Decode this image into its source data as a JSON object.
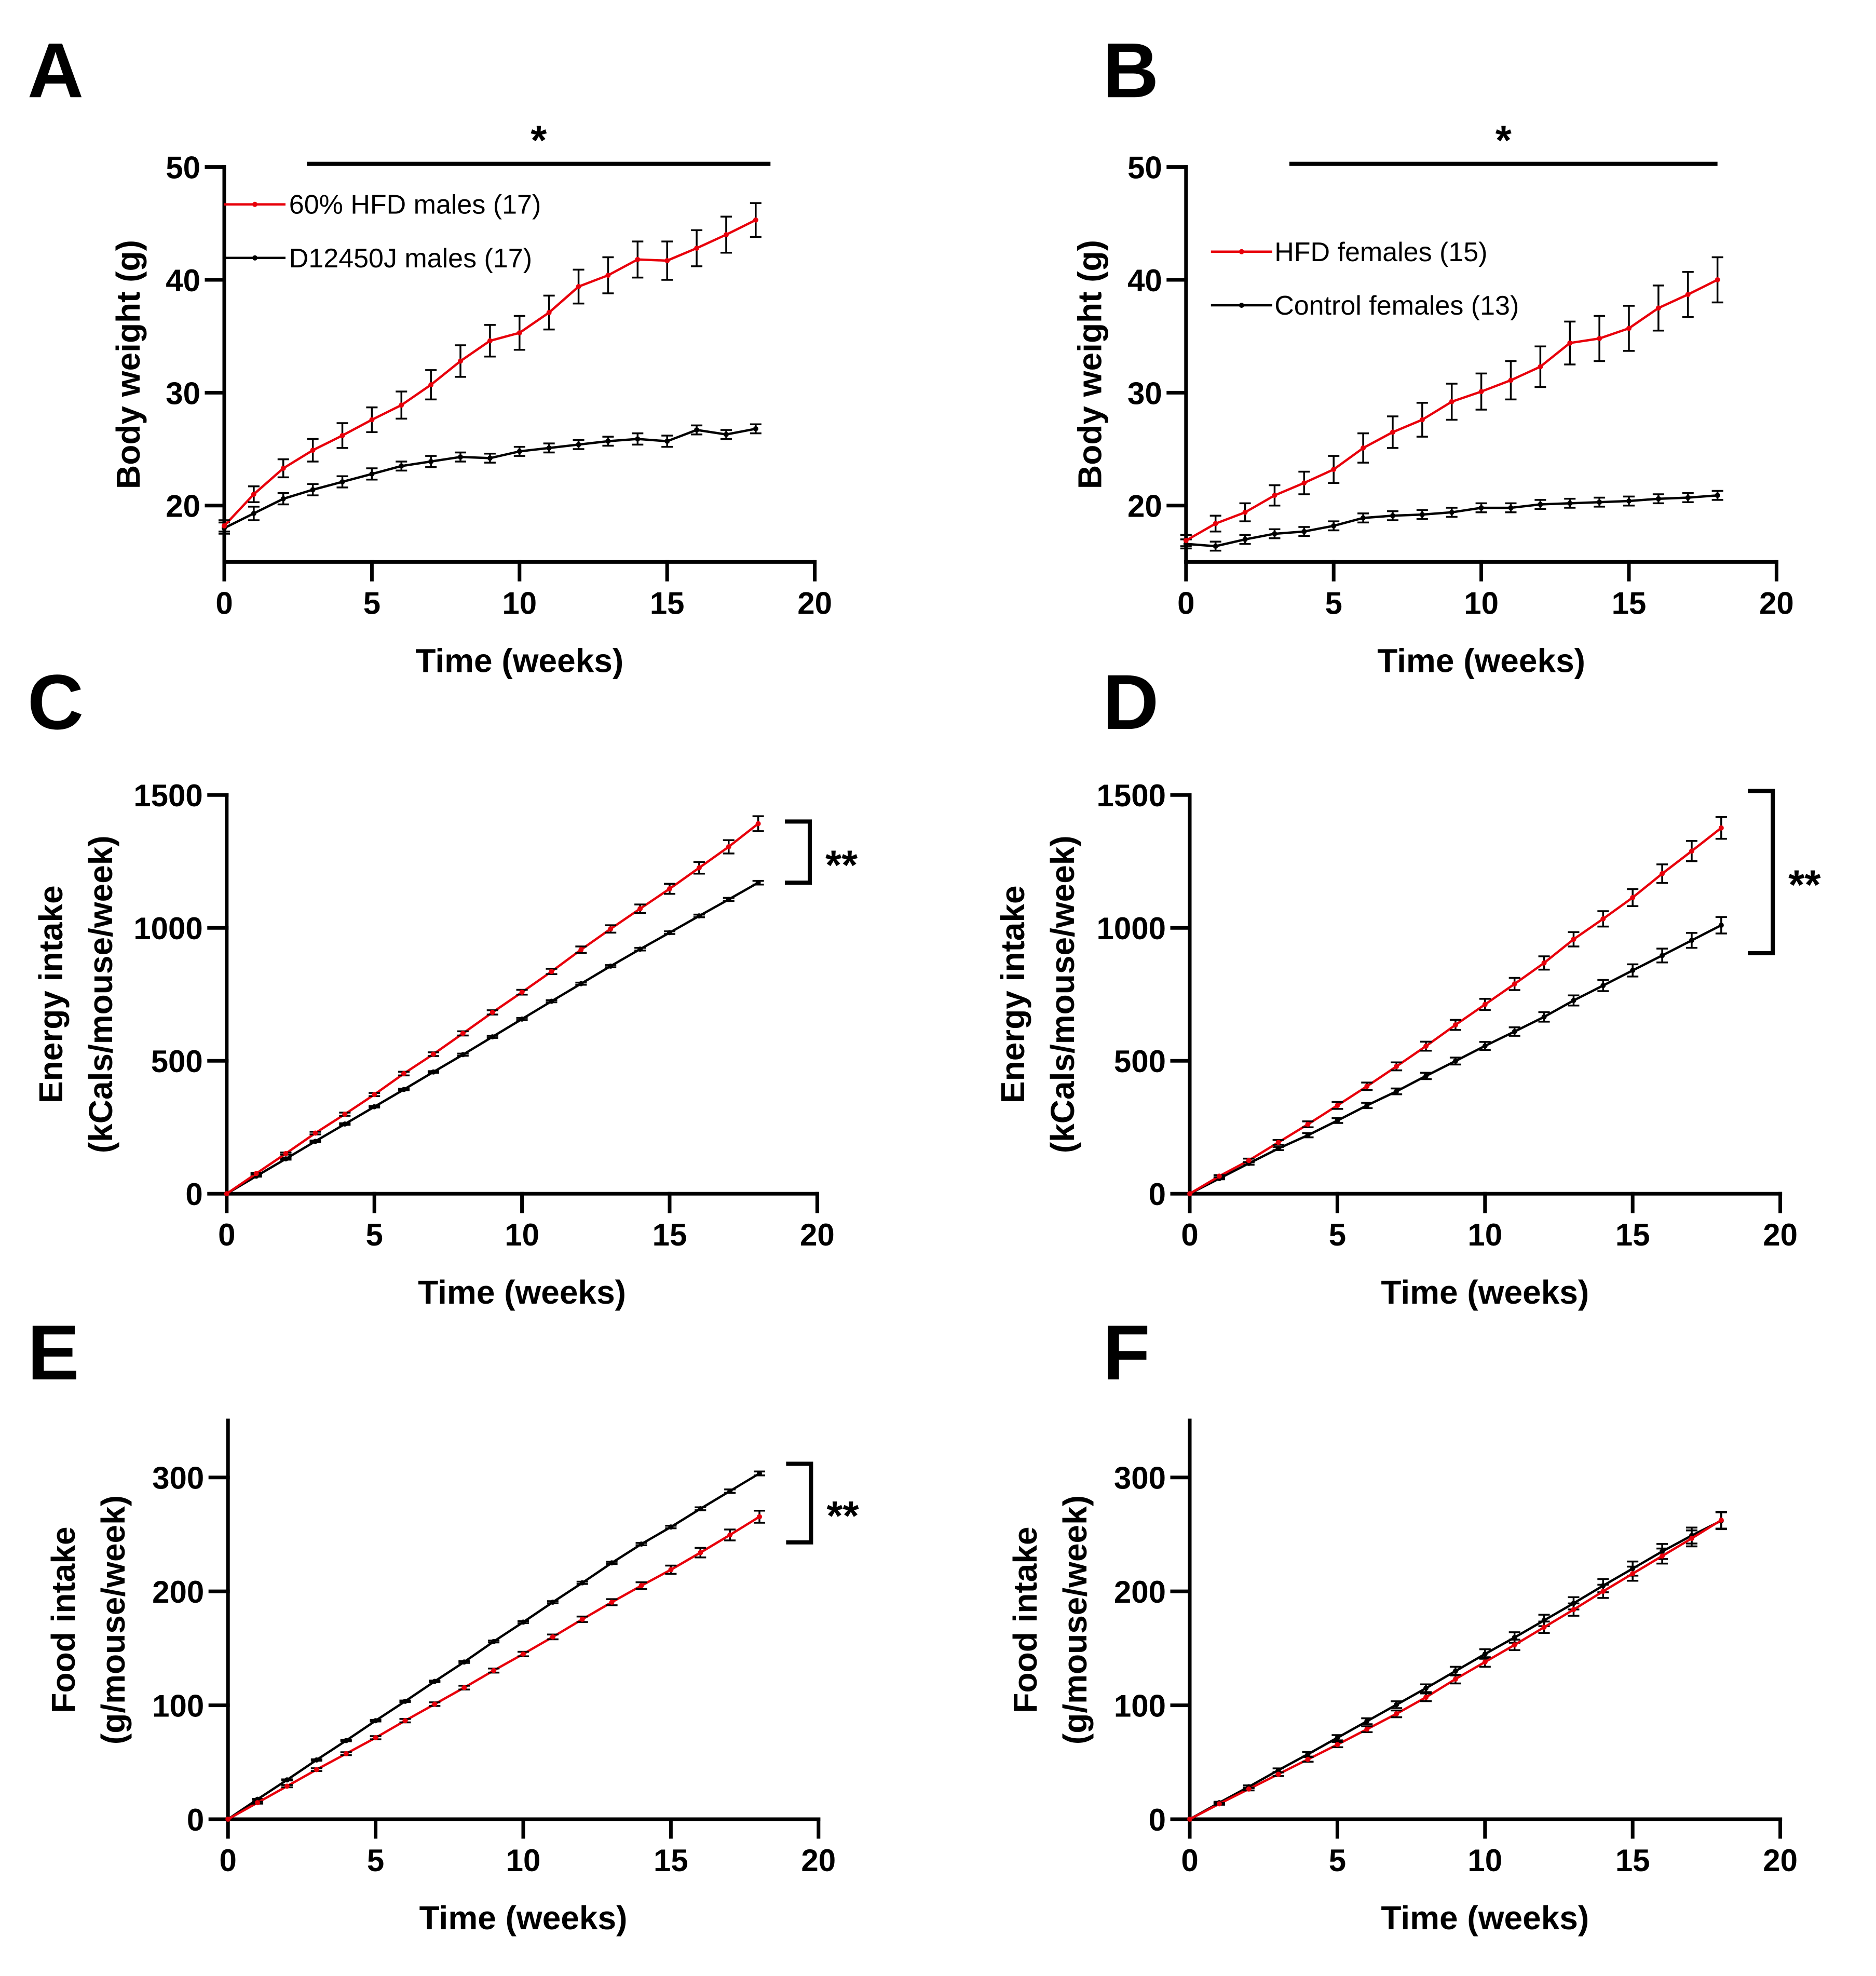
{
  "chart_data": [
    {
      "panel": "A",
      "type": "line",
      "xlabel": "Time (weeks)",
      "ylabel": "Body weight (g)",
      "xlim": [
        0,
        20
      ],
      "ylim": [
        15,
        50
      ],
      "xticks": [
        0,
        5,
        10,
        15,
        20
      ],
      "yticks": [
        20,
        30,
        40,
        50
      ],
      "legend_position": "top-left",
      "significance": {
        "type": "bar",
        "label": "*",
        "from_week": 2.8,
        "to_week": 18.5
      },
      "x": [
        0,
        1,
        2,
        3,
        4,
        5,
        6,
        7,
        8,
        9,
        10,
        11,
        12,
        13,
        14,
        15,
        16,
        17,
        18
      ],
      "series": [
        {
          "name": "60% HFD males (17)",
          "color": "#e8000b",
          "values": [
            18.2,
            21.0,
            23.3,
            24.9,
            26.2,
            27.6,
            28.9,
            30.7,
            32.8,
            34.6,
            35.3,
            37.1,
            39.4,
            40.4,
            41.8,
            41.7,
            42.8,
            44.0,
            45.3
          ],
          "errors": [
            0.5,
            0.7,
            0.8,
            1.0,
            1.1,
            1.1,
            1.2,
            1.3,
            1.4,
            1.4,
            1.5,
            1.5,
            1.5,
            1.6,
            1.6,
            1.7,
            1.6,
            1.6,
            1.5
          ]
        },
        {
          "name": "D12450J males (17)",
          "color": "#000000",
          "values": [
            18.0,
            19.3,
            20.6,
            21.4,
            22.1,
            22.8,
            23.5,
            23.9,
            24.3,
            24.2,
            24.8,
            25.1,
            25.4,
            25.7,
            25.9,
            25.7,
            26.7,
            26.3,
            26.8
          ],
          "errors": [
            0.5,
            0.6,
            0.5,
            0.5,
            0.5,
            0.5,
            0.4,
            0.5,
            0.4,
            0.4,
            0.4,
            0.4,
            0.4,
            0.4,
            0.5,
            0.5,
            0.4,
            0.4,
            0.4
          ]
        }
      ]
    },
    {
      "panel": "B",
      "type": "line",
      "xlabel": "Time (weeks)",
      "ylabel": "Body weight (g)",
      "xlim": [
        0,
        20
      ],
      "ylim": [
        15,
        50
      ],
      "xticks": [
        0,
        5,
        10,
        15,
        20
      ],
      "yticks": [
        20,
        30,
        40,
        50
      ],
      "legend_position": "top-left",
      "significance": {
        "type": "bar",
        "label": "*",
        "from_week": 3.5,
        "to_week": 18.0
      },
      "x": [
        0,
        1,
        2,
        3,
        4,
        5,
        6,
        7,
        8,
        9,
        10,
        11,
        12,
        13,
        14,
        15,
        16,
        17,
        18
      ],
      "series": [
        {
          "name": "HFD females (15)",
          "color": "#e8000b",
          "values": [
            16.9,
            18.4,
            19.4,
            20.9,
            22.0,
            23.2,
            25.1,
            26.5,
            27.6,
            29.2,
            30.1,
            31.1,
            32.3,
            34.4,
            34.8,
            35.7,
            37.5,
            38.7,
            40.0
          ],
          "errors": [
            0.5,
            0.7,
            0.8,
            0.9,
            1.0,
            1.2,
            1.3,
            1.4,
            1.5,
            1.6,
            1.6,
            1.7,
            1.8,
            1.9,
            2.0,
            2.0,
            2.0,
            2.0,
            2.0
          ]
        },
        {
          "name": "Control females (13)",
          "color": "#000000",
          "values": [
            16.6,
            16.4,
            17.0,
            17.5,
            17.7,
            18.2,
            18.9,
            19.1,
            19.2,
            19.4,
            19.8,
            19.8,
            20.1,
            20.2,
            20.3,
            20.4,
            20.6,
            20.7,
            20.9
          ],
          "errors": [
            0.4,
            0.4,
            0.4,
            0.4,
            0.4,
            0.4,
            0.4,
            0.4,
            0.4,
            0.4,
            0.4,
            0.4,
            0.4,
            0.4,
            0.4,
            0.4,
            0.4,
            0.4,
            0.4
          ]
        }
      ]
    },
    {
      "panel": "C",
      "type": "line",
      "xlabel": "Time (weeks)",
      "ylabel": "Energy intake",
      "ylabel2": "(kCals/mouse/week)",
      "xlim": [
        0,
        20
      ],
      "ylim": [
        0,
        1500
      ],
      "xticks": [
        0,
        5,
        10,
        15,
        20
      ],
      "yticks": [
        0,
        500,
        1000,
        1500
      ],
      "significance": {
        "type": "bracket",
        "label": "**",
        "from_value": 1170,
        "to_value": 1400
      },
      "x": [
        0,
        1,
        2,
        3,
        4,
        5,
        6,
        7,
        8,
        9,
        10,
        11,
        12,
        13,
        14,
        15,
        16,
        17,
        18
      ],
      "series": [
        {
          "name": "60% HFD males (17)",
          "color": "#e8000b",
          "values": [
            0,
            76,
            151,
            228,
            299,
            373,
            452,
            525,
            603,
            682,
            758,
            836,
            918,
            996,
            1072,
            1147,
            1226,
            1305,
            1392
          ],
          "errors": [
            0,
            3,
            4,
            5,
            6,
            6,
            7,
            7,
            8,
            8,
            9,
            10,
            12,
            14,
            16,
            19,
            22,
            25,
            28
          ]
        },
        {
          "name": "D12450J males (17)",
          "color": "#000000",
          "values": [
            0,
            66,
            131,
            197,
            262,
            327,
            392,
            458,
            523,
            590,
            657,
            724,
            790,
            856,
            920,
            982,
            1045,
            1107,
            1170
          ],
          "errors": [
            0,
            2,
            3,
            3,
            3,
            3,
            3,
            3,
            4,
            4,
            4,
            4,
            4,
            4,
            5,
            5,
            5,
            6,
            7
          ]
        }
      ]
    },
    {
      "panel": "D",
      "type": "line",
      "xlabel": "Time (weeks)",
      "ylabel": "Energy intake",
      "ylabel2": "(kCals/mouse/week)",
      "xlim": [
        0,
        20
      ],
      "ylim": [
        0,
        1500
      ],
      "xticks": [
        0,
        5,
        10,
        15,
        20
      ],
      "yticks": [
        0,
        500,
        1000,
        1500
      ],
      "significance": {
        "type": "bracket",
        "label": "**",
        "from_value": 905,
        "to_value": 1515
      },
      "x": [
        0,
        1,
        2,
        3,
        4,
        5,
        6,
        7,
        8,
        9,
        10,
        11,
        12,
        13,
        14,
        15,
        16,
        17,
        18
      ],
      "series": [
        {
          "name": "HFD females (15)",
          "color": "#e8000b",
          "values": [
            0,
            66,
            125,
            193,
            261,
            332,
            404,
            479,
            555,
            635,
            712,
            789,
            868,
            957,
            1034,
            1114,
            1204,
            1289,
            1376
          ],
          "errors": [
            0,
            4,
            7,
            9,
            11,
            13,
            14,
            15,
            17,
            19,
            21,
            23,
            25,
            27,
            29,
            32,
            35,
            38,
            41
          ]
        },
        {
          "name": "Control females (13)",
          "color": "#000000",
          "values": [
            0,
            57,
            114,
            170,
            220,
            275,
            332,
            385,
            443,
            499,
            556,
            610,
            665,
            727,
            783,
            840,
            896,
            953,
            1010
          ],
          "errors": [
            0,
            3,
            5,
            6,
            8,
            9,
            10,
            11,
            12,
            13,
            15,
            16,
            18,
            19,
            21,
            23,
            26,
            28,
            31
          ]
        }
      ]
    },
    {
      "panel": "E",
      "type": "line",
      "xlabel": "Time (weeks)",
      "ylabel": "Food intake",
      "ylabel2": "(g/mouse/week)",
      "xlim": [
        0,
        20
      ],
      "ylim": [
        0,
        350
      ],
      "xticks": [
        0,
        5,
        10,
        15,
        20
      ],
      "yticks": [
        0,
        100,
        200,
        300
      ],
      "significance": {
        "type": "bracket",
        "label": "**",
        "from_value": 243,
        "to_value": 312
      },
      "x": [
        0,
        1,
        2,
        3,
        4,
        5,
        6,
        7,
        8,
        9,
        10,
        11,
        12,
        13,
        14,
        15,
        16,
        17,
        18
      ],
      "series": [
        {
          "name": "60% HFD males (17)",
          "color": "#e8000b",
          "values": [
            0,
            14.5,
            29,
            43.5,
            57.5,
            71.5,
            86.5,
            101,
            115.5,
            130.5,
            145,
            160,
            175.5,
            190.5,
            205,
            219,
            234,
            249.5,
            265.5
          ],
          "errors": [
            0,
            0.8,
            1.0,
            1.2,
            1.3,
            1.4,
            1.5,
            1.6,
            1.7,
            1.8,
            2.0,
            2.1,
            2.4,
            2.7,
            3.0,
            3.6,
            4.2,
            4.8,
            5.3
          ]
        },
        {
          "name": "D12450J males (17)",
          "color": "#000000",
          "values": [
            0,
            17.5,
            34.5,
            52,
            69,
            86.5,
            103.5,
            121,
            138,
            156,
            173,
            190.5,
            207.5,
            225,
            241.5,
            256.5,
            272.5,
            288,
            303.5
          ],
          "errors": [
            0,
            0.4,
            0.5,
            0.6,
            0.6,
            0.7,
            0.7,
            0.7,
            0.8,
            0.8,
            0.9,
            0.9,
            1.0,
            1.0,
            1.0,
            1.1,
            1.3,
            1.5,
            1.7
          ]
        }
      ]
    },
    {
      "panel": "F",
      "type": "line",
      "xlabel": "Time (weeks)",
      "ylabel": "Food intake",
      "ylabel2": "(g/mouse/week)",
      "xlim": [
        0,
        20
      ],
      "ylim": [
        0,
        350
      ],
      "xticks": [
        0,
        5,
        10,
        15,
        20
      ],
      "yticks": [
        0,
        100,
        200,
        300
      ],
      "x": [
        0,
        1,
        2,
        3,
        4,
        5,
        6,
        7,
        8,
        9,
        10,
        11,
        12,
        13,
        14,
        15,
        16,
        17,
        18
      ],
      "series": [
        {
          "name": "HFD females (15)",
          "color": "#e8000b",
          "values": [
            0,
            13.5,
            26.5,
            39.5,
            52.5,
            65.5,
            79,
            92.5,
            107,
            123,
            138,
            153,
            168.5,
            184,
            200,
            215.5,
            231,
            246.5,
            262.5
          ],
          "errors": [
            0,
            0.8,
            1.2,
            1.6,
            2.0,
            2.3,
            2.6,
            3.0,
            3.4,
            3.8,
            4.2,
            4.6,
            5.0,
            5.4,
            5.8,
            6.2,
            6.6,
            7.0,
            7.4
          ]
        },
        {
          "name": "Control females (13)",
          "color": "#000000",
          "values": [
            0,
            14.5,
            28.5,
            43,
            57,
            71.5,
            86,
            100.5,
            115,
            130,
            145,
            159.5,
            174.5,
            189.5,
            205,
            220,
            235,
            249,
            262
          ],
          "errors": [
            0,
            0.8,
            1.2,
            1.6,
            2.0,
            2.3,
            2.6,
            3.0,
            3.4,
            3.8,
            4.2,
            4.6,
            5.0,
            5.4,
            5.8,
            6.2,
            6.6,
            7.0,
            7.4
          ]
        }
      ]
    }
  ]
}
